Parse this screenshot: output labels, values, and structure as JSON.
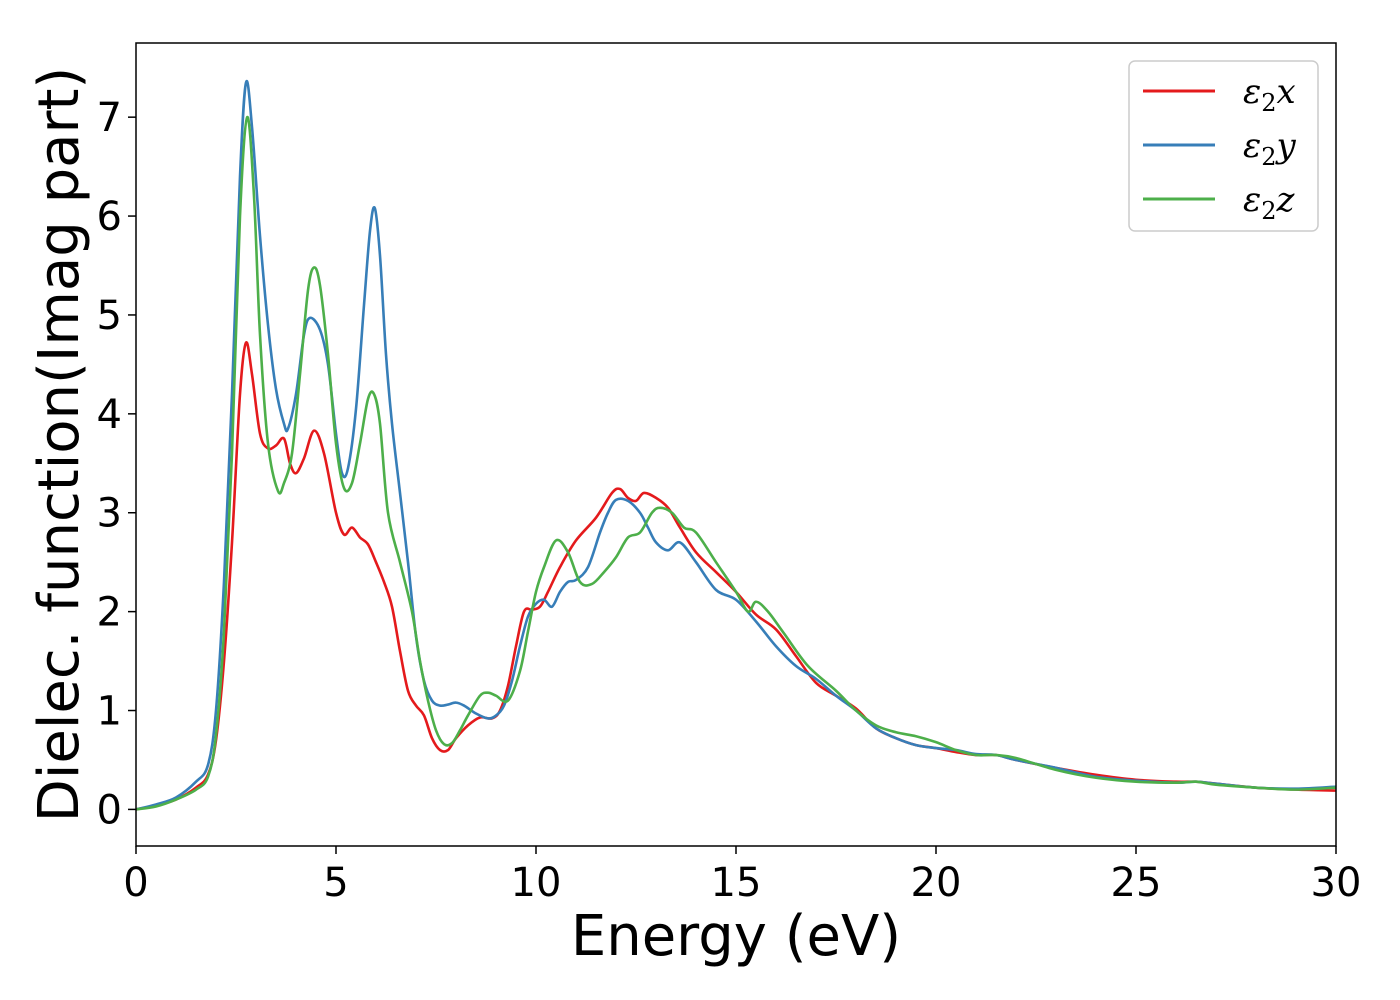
{
  "chart_data": {
    "type": "line",
    "xlabel": "Energy (eV)",
    "ylabel": "Dielec. function(Imag part)",
    "xlim": [
      0,
      30
    ],
    "ylim": [
      -0.37,
      7.75
    ],
    "xticks": [
      0,
      5,
      10,
      15,
      20,
      25,
      30
    ],
    "yticks": [
      0,
      1,
      2,
      3,
      4,
      5,
      6,
      7
    ],
    "grid": false,
    "legend_position": "top-right",
    "series": [
      {
        "name": "ε2x",
        "label_base": "ε",
        "label_sub": "2",
        "label_tail": "x",
        "color": "#e41a1c",
        "x": [
          0,
          0.5,
          1.0,
          1.5,
          1.8,
          2.0,
          2.2,
          2.4,
          2.6,
          2.75,
          2.9,
          3.1,
          3.3,
          3.5,
          3.7,
          3.85,
          4.0,
          4.2,
          4.45,
          4.7,
          5.0,
          5.2,
          5.4,
          5.6,
          5.8,
          6.0,
          6.2,
          6.4,
          6.6,
          6.8,
          7.0,
          7.2,
          7.4,
          7.6,
          7.8,
          8.0,
          8.3,
          8.6,
          8.9,
          9.1,
          9.3,
          9.5,
          9.7,
          9.9,
          10.1,
          10.3,
          10.6,
          11.0,
          11.5,
          11.9,
          12.1,
          12.3,
          12.5,
          12.7,
          13.0,
          13.3,
          13.6,
          14.0,
          14.5,
          15.0,
          15.5,
          16.0,
          16.5,
          17.0,
          17.5,
          18.0,
          18.5,
          19.0,
          19.5,
          20.0,
          20.5,
          21.0,
          21.5,
          22.0,
          23.0,
          24.0,
          25.0,
          26.0,
          26.5,
          27.0,
          28.0,
          29.0,
          30.0
        ],
        "values": [
          0,
          0.04,
          0.1,
          0.22,
          0.35,
          0.7,
          1.5,
          2.7,
          4.2,
          4.72,
          4.4,
          3.8,
          3.65,
          3.68,
          3.75,
          3.5,
          3.4,
          3.55,
          3.83,
          3.6,
          3.0,
          2.78,
          2.85,
          2.75,
          2.68,
          2.5,
          2.3,
          2.05,
          1.6,
          1.2,
          1.05,
          0.95,
          0.72,
          0.6,
          0.6,
          0.72,
          0.85,
          0.93,
          0.92,
          1.0,
          1.25,
          1.65,
          2.0,
          2.02,
          2.05,
          2.2,
          2.45,
          2.72,
          2.95,
          3.2,
          3.24,
          3.15,
          3.12,
          3.2,
          3.15,
          3.05,
          2.85,
          2.6,
          2.4,
          2.2,
          1.97,
          1.82,
          1.55,
          1.28,
          1.15,
          1.02,
          0.82,
          0.72,
          0.65,
          0.62,
          0.58,
          0.55,
          0.55,
          0.5,
          0.42,
          0.35,
          0.3,
          0.28,
          0.28,
          0.26,
          0.22,
          0.2,
          0.19
        ]
      },
      {
        "name": "ε2y",
        "label_base": "ε",
        "label_sub": "2",
        "label_tail": "y",
        "color": "#377eb8",
        "x": [
          0,
          0.5,
          1.0,
          1.5,
          1.8,
          2.0,
          2.2,
          2.4,
          2.6,
          2.75,
          2.9,
          3.1,
          3.3,
          3.5,
          3.7,
          3.8,
          4.0,
          4.2,
          4.35,
          4.6,
          4.8,
          5.0,
          5.15,
          5.3,
          5.5,
          5.7,
          5.85,
          5.97,
          6.1,
          6.25,
          6.4,
          6.6,
          6.8,
          7.0,
          7.2,
          7.4,
          7.6,
          7.8,
          8.0,
          8.2,
          8.5,
          8.8,
          9.0,
          9.2,
          9.4,
          9.6,
          9.8,
          10.0,
          10.2,
          10.4,
          10.6,
          10.8,
          11.0,
          11.3,
          11.6,
          11.8,
          12.0,
          12.3,
          12.6,
          12.8,
          13.0,
          13.3,
          13.6,
          14.0,
          14.5,
          15.0,
          15.5,
          16.0,
          16.5,
          17.0,
          17.5,
          18.0,
          18.5,
          19.0,
          19.5,
          20.0,
          20.5,
          21.0,
          21.5,
          22.0,
          23.0,
          24.0,
          25.0,
          26.0,
          26.5,
          27.0,
          28.0,
          29.0,
          30.0
        ],
        "values": [
          0,
          0.05,
          0.12,
          0.28,
          0.45,
          1.0,
          2.3,
          4.2,
          6.4,
          7.35,
          6.9,
          5.8,
          4.9,
          4.25,
          3.9,
          3.85,
          4.2,
          4.8,
          4.97,
          4.85,
          4.5,
          3.8,
          3.4,
          3.45,
          4.05,
          5.1,
          5.85,
          6.08,
          5.6,
          4.6,
          3.9,
          3.2,
          2.5,
          1.75,
          1.3,
          1.1,
          1.05,
          1.06,
          1.08,
          1.05,
          0.97,
          0.92,
          0.95,
          1.05,
          1.3,
          1.65,
          1.95,
          2.08,
          2.12,
          2.05,
          2.2,
          2.3,
          2.32,
          2.45,
          2.8,
          3.0,
          3.13,
          3.12,
          3.0,
          2.85,
          2.7,
          2.62,
          2.7,
          2.5,
          2.22,
          2.12,
          1.9,
          1.65,
          1.45,
          1.32,
          1.15,
          1.0,
          0.82,
          0.72,
          0.65,
          0.62,
          0.6,
          0.56,
          0.55,
          0.5,
          0.42,
          0.33,
          0.29,
          0.27,
          0.28,
          0.26,
          0.22,
          0.21,
          0.23
        ]
      },
      {
        "name": "ε2z",
        "label_base": "ε",
        "label_sub": "2",
        "label_tail": "z",
        "color": "#4daf4a",
        "x": [
          0,
          0.5,
          1.0,
          1.5,
          1.8,
          2.0,
          2.2,
          2.4,
          2.6,
          2.78,
          2.95,
          3.1,
          3.3,
          3.55,
          3.7,
          3.9,
          4.1,
          4.3,
          4.45,
          4.6,
          4.8,
          5.0,
          5.2,
          5.4,
          5.6,
          5.8,
          5.95,
          6.1,
          6.3,
          6.6,
          6.9,
          7.1,
          7.3,
          7.5,
          7.7,
          7.9,
          8.1,
          8.3,
          8.6,
          8.8,
          9.0,
          9.3,
          9.6,
          9.8,
          10.0,
          10.2,
          10.5,
          10.8,
          11.1,
          11.4,
          11.7,
          12.0,
          12.3,
          12.6,
          12.9,
          13.1,
          13.4,
          13.7,
          14.0,
          14.5,
          15.0,
          15.3,
          15.5,
          15.8,
          16.2,
          16.8,
          17.5,
          18.0,
          18.5,
          19.0,
          19.5,
          20.0,
          20.5,
          21.0,
          21.5,
          22.0,
          23.0,
          24.0,
          25.0,
          26.0,
          26.5,
          27.0,
          28.0,
          29.0,
          30.0
        ],
        "values": [
          0,
          0.03,
          0.1,
          0.2,
          0.33,
          0.75,
          1.8,
          3.6,
          6.0,
          7.0,
          6.2,
          4.8,
          3.7,
          3.22,
          3.3,
          3.6,
          4.4,
          5.25,
          5.48,
          5.3,
          4.6,
          3.7,
          3.25,
          3.3,
          3.7,
          4.15,
          4.2,
          3.9,
          3.0,
          2.5,
          2.0,
          1.5,
          1.1,
          0.8,
          0.66,
          0.67,
          0.8,
          0.95,
          1.15,
          1.18,
          1.15,
          1.1,
          1.4,
          1.8,
          2.2,
          2.45,
          2.72,
          2.6,
          2.3,
          2.28,
          2.4,
          2.55,
          2.75,
          2.8,
          3.0,
          3.05,
          3.0,
          2.85,
          2.8,
          2.5,
          2.2,
          2.0,
          2.1,
          2.0,
          1.78,
          1.45,
          1.2,
          1.0,
          0.85,
          0.78,
          0.74,
          0.68,
          0.6,
          0.55,
          0.55,
          0.52,
          0.4,
          0.32,
          0.28,
          0.27,
          0.28,
          0.25,
          0.22,
          0.2,
          0.22
        ]
      }
    ]
  }
}
